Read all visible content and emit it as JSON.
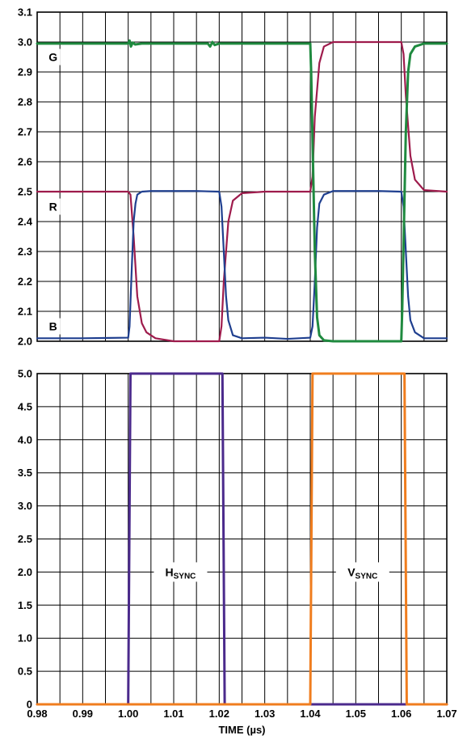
{
  "chart_data": [
    {
      "type": "line",
      "title": "",
      "xlabel": "",
      "ylabel": "",
      "xlim": [
        0.98,
        1.07
      ],
      "ylim": [
        2.0,
        3.1
      ],
      "yticks": [
        "2.0",
        "2.1",
        "2.2",
        "2.3",
        "2.4",
        "2.5",
        "2.6",
        "2.7",
        "2.8",
        "2.9",
        "3.0",
        "3.1"
      ],
      "grid": true,
      "annotations": [
        {
          "text": "G",
          "x": 0.9835,
          "y": 2.95
        },
        {
          "text": "R",
          "x": 0.9835,
          "y": 2.45
        },
        {
          "text": "B",
          "x": 0.9835,
          "y": 2.05
        }
      ],
      "series": [
        {
          "name": "",
          "color": "#9e1b4c",
          "x": [
            0.98,
            0.99,
            1.0,
            1.0005,
            1.0012,
            1.002,
            1.003,
            1.004,
            1.006,
            1.01,
            1.015,
            1.02,
            1.0205,
            1.021,
            1.022,
            1.023,
            1.025,
            1.03,
            1.035,
            1.04,
            1.0405,
            1.041,
            1.042,
            1.043,
            1.045,
            1.05,
            1.055,
            1.06,
            1.0605,
            1.061,
            1.062,
            1.063,
            1.065,
            1.07
          ],
          "y": [
            2.5,
            2.5,
            2.5,
            2.49,
            2.35,
            2.15,
            2.06,
            2.03,
            2.01,
            2.0,
            2.0,
            2.0,
            2.05,
            2.2,
            2.4,
            2.47,
            2.495,
            2.5,
            2.5,
            2.5,
            2.55,
            2.75,
            2.93,
            2.985,
            3.0,
            3.0,
            3.0,
            3.0,
            2.96,
            2.82,
            2.62,
            2.54,
            2.505,
            2.5
          ]
        },
        {
          "name": "",
          "color": "#1f3f8f",
          "x": [
            0.98,
            0.99,
            1.0,
            1.0003,
            1.0008,
            1.0012,
            1.0016,
            1.002,
            1.003,
            1.005,
            1.01,
            1.015,
            1.02,
            1.0205,
            1.021,
            1.0215,
            1.022,
            1.023,
            1.025,
            1.03,
            1.035,
            1.04,
            1.0405,
            1.041,
            1.0415,
            1.042,
            1.043,
            1.045,
            1.05,
            1.055,
            1.06,
            1.0605,
            1.061,
            1.0615,
            1.062,
            1.063,
            1.065,
            1.07
          ],
          "y": [
            2.01,
            2.01,
            2.012,
            2.05,
            2.25,
            2.4,
            2.46,
            2.49,
            2.5,
            2.502,
            2.502,
            2.502,
            2.5,
            2.45,
            2.3,
            2.15,
            2.07,
            2.02,
            2.01,
            2.012,
            2.008,
            2.012,
            2.05,
            2.2,
            2.38,
            2.46,
            2.49,
            2.502,
            2.502,
            2.502,
            2.5,
            2.45,
            2.3,
            2.15,
            2.07,
            2.03,
            2.01,
            2.01
          ]
        },
        {
          "name": "",
          "color": "#1f8a3f",
          "x": [
            0.98,
            0.99,
            1.0,
            1.0003,
            1.0006,
            1.001,
            1.0015,
            1.003,
            1.005,
            1.01,
            1.015,
            1.0175,
            1.018,
            1.0185,
            1.019,
            1.02,
            1.03,
            1.04,
            1.0402,
            1.0406,
            1.041,
            1.0415,
            1.042,
            1.043,
            1.045,
            1.05,
            1.055,
            1.06,
            1.0602,
            1.0606,
            1.061,
            1.0615,
            1.062,
            1.063,
            1.065,
            1.07
          ],
          "y": [
            2.995,
            2.995,
            2.995,
            3.005,
            2.985,
            2.998,
            2.992,
            2.995,
            2.995,
            2.995,
            2.995,
            2.995,
            2.985,
            3.0,
            2.99,
            2.995,
            2.995,
            2.995,
            2.9,
            2.6,
            2.3,
            2.08,
            2.02,
            2.003,
            2.0,
            2.0,
            2.0,
            2.0,
            2.1,
            2.4,
            2.7,
            2.9,
            2.96,
            2.985,
            2.995,
            2.995
          ]
        }
      ]
    },
    {
      "type": "line",
      "title": "",
      "xlabel": "TIME (µs)",
      "ylabel": "",
      "xlim": [
        0.98,
        1.07
      ],
      "ylim": [
        0,
        5.0
      ],
      "xticks": [
        "0.98",
        "0.99",
        "1.00",
        "1.01",
        "1.02",
        "1.03",
        "1.04",
        "1.05",
        "1.06",
        "1.07"
      ],
      "yticks": [
        "0",
        "0.5",
        "1.0",
        "1.5",
        "2.0",
        "2.5",
        "3.0",
        "3.5",
        "4.0",
        "4.5",
        "5.0"
      ],
      "grid": true,
      "annotations": [
        {
          "label": "H",
          "sub": "SYNC",
          "x": 1.0115,
          "y": 2.0
        },
        {
          "label": "V",
          "sub": "SYNC",
          "x": 1.0515,
          "y": 2.0
        }
      ],
      "series": [
        {
          "name": "HSYNC",
          "color": "#4b2a8c",
          "x": [
            0.98,
            1.0,
            1.0005,
            1.0207,
            1.0212,
            1.07
          ],
          "y": [
            0,
            0,
            5.0,
            5.0,
            0,
            0
          ]
        },
        {
          "name": "VSYNC",
          "color": "#f07d1e",
          "x": [
            0.98,
            1.04,
            1.0405,
            1.0607,
            1.0612,
            1.07
          ],
          "y": [
            0,
            0,
            5.0,
            5.0,
            0,
            0
          ]
        }
      ]
    }
  ]
}
